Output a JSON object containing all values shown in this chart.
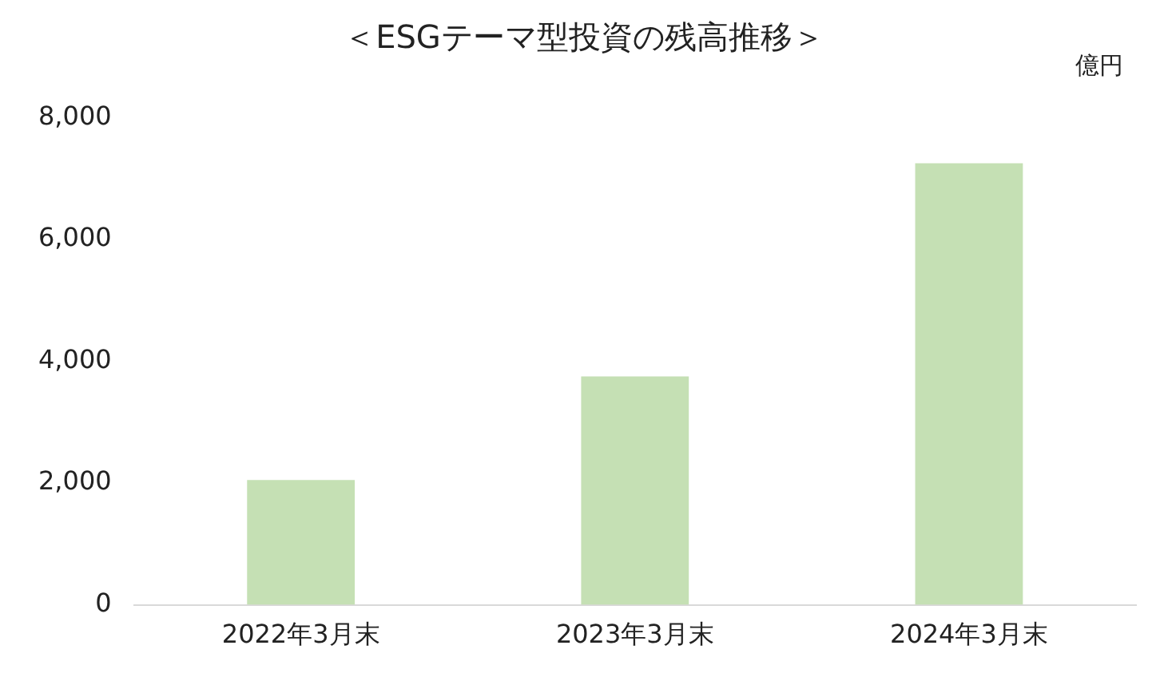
{
  "chart_data": {
    "type": "bar",
    "title": "＜ESGテーマ型投資の残高推移＞",
    "ylabel": "億円",
    "categories": [
      "2022年3月末",
      "2023年3月末",
      "2024年3月末"
    ],
    "values": [
      2050,
      3750,
      7250
    ],
    "color": "#c5e0b4",
    "ylim": [
      0,
      8000
    ],
    "yticks": [
      0,
      {
        "value": 2000,
        "label": "2,000"
      },
      {
        "value": 4000,
        "label": "4,000"
      },
      {
        "value": 6000,
        "label": "6,000"
      },
      {
        "value": 8000,
        "label": "8,000"
      }
    ],
    "grid": false
  }
}
